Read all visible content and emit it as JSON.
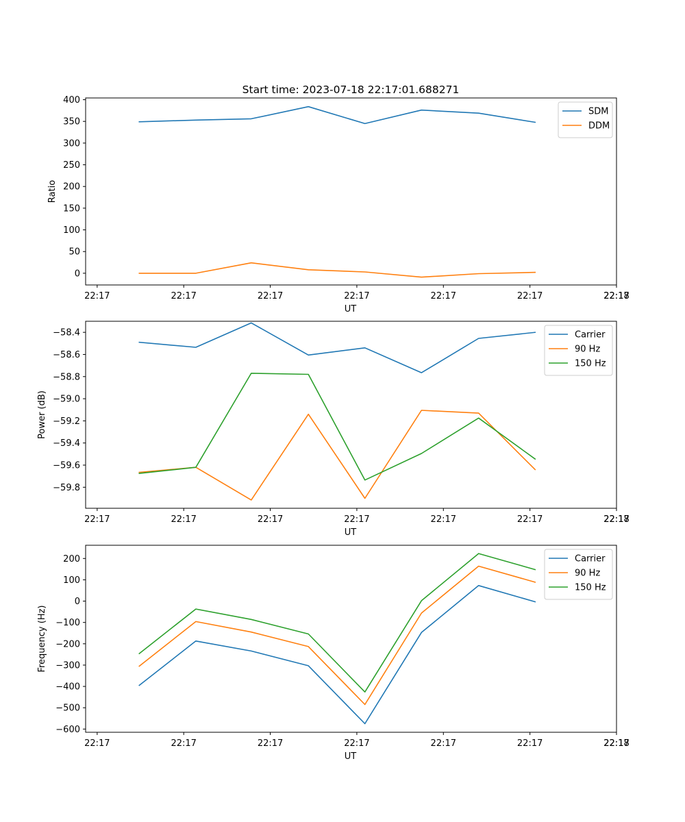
{
  "figure": {
    "title": "Start time: 2023-07-18 22:17:01.688271"
  },
  "chart_data": [
    {
      "type": "line",
      "title": "Start time: 2023-07-18 22:17:01.688271",
      "xlabel": "UT",
      "ylabel": "Ratio",
      "x_tick_labels": [
        "22:17",
        "22:17",
        "22:17",
        "22:17",
        "22:17",
        "22:17",
        "22:17"
      ],
      "x_tick_values": [
        0,
        1.5,
        3,
        4.5,
        6,
        7.5,
        9
      ],
      "last_x_tick_label": "22:18",
      "x": [
        0.73,
        1.71,
        2.67,
        3.66,
        4.64,
        5.62,
        6.61,
        7.59
      ],
      "xlim": [
        -0.2,
        9.0
      ],
      "ylim": [
        -27,
        404
      ],
      "y_ticks": [
        0,
        50,
        100,
        150,
        200,
        250,
        300,
        350,
        400
      ],
      "grid": false,
      "legend_position": "top-right",
      "series": [
        {
          "name": "SDM",
          "color": "#1f77b4",
          "values": [
            349,
            353,
            356,
            384,
            345,
            376,
            369,
            348
          ]
        },
        {
          "name": "DDM",
          "color": "#ff7f0e",
          "values": [
            0,
            0,
            24,
            8,
            3,
            -9,
            -1,
            2
          ]
        }
      ]
    },
    {
      "type": "line",
      "title": "",
      "xlabel": "UT",
      "ylabel": "Power (dB)",
      "x_tick_labels": [
        "22:17",
        "22:17",
        "22:17",
        "22:17",
        "22:17",
        "22:17",
        "22:17"
      ],
      "x_tick_values": [
        0,
        1.5,
        3,
        4.5,
        6,
        7.5,
        9
      ],
      "last_x_tick_label": "22:18",
      "x": [
        0.73,
        1.71,
        2.67,
        3.66,
        4.64,
        5.62,
        6.61,
        7.59
      ],
      "xlim": [
        -0.2,
        9.0
      ],
      "ylim": [
        -59.99,
        -58.3
      ],
      "y_ticks": [
        -59.8,
        -59.6,
        -59.4,
        -59.2,
        -59.0,
        -58.8,
        -58.6,
        -58.4
      ],
      "y_tick_labels": [
        "−59.8",
        "−59.6",
        "−59.4",
        "−59.2",
        "−59.0",
        "−58.8",
        "−58.6",
        "−58.4"
      ],
      "grid": false,
      "legend_position": "top-right",
      "series": [
        {
          "name": "Carrier",
          "color": "#1f77b4",
          "values": [
            -58.49,
            -58.535,
            -58.315,
            -58.605,
            -58.54,
            -58.765,
            -58.455,
            -58.4
          ]
        },
        {
          "name": "90 Hz",
          "color": "#ff7f0e",
          "values": [
            -59.665,
            -59.62,
            -59.915,
            -59.14,
            -59.9,
            -59.105,
            -59.13,
            -59.64
          ]
        },
        {
          "name": "150 Hz",
          "color": "#2ca02c",
          "values": [
            -59.675,
            -59.62,
            -58.77,
            -58.78,
            -59.735,
            -59.495,
            -59.175,
            -59.545
          ]
        }
      ]
    },
    {
      "type": "line",
      "title": "",
      "xlabel": "UT",
      "ylabel": "Frequency (Hz)",
      "x_tick_labels": [
        "22:17",
        "22:17",
        "22:17",
        "22:17",
        "22:17",
        "22:17",
        "22:17"
      ],
      "x_tick_values": [
        0,
        1.5,
        3,
        4.5,
        6,
        7.5,
        9
      ],
      "last_x_tick_label": "22:18",
      "x": [
        0.73,
        1.71,
        2.67,
        3.66,
        4.64,
        5.62,
        6.61,
        7.59
      ],
      "xlim": [
        -0.2,
        9.0
      ],
      "ylim": [
        -615,
        262
      ],
      "y_ticks": [
        -600,
        -500,
        -400,
        -300,
        -200,
        -100,
        0,
        100,
        200
      ],
      "y_tick_labels": [
        "−600",
        "−500",
        "−400",
        "−300",
        "−200",
        "−100",
        "0",
        "100",
        "200"
      ],
      "grid": false,
      "legend_position": "top-right",
      "series": [
        {
          "name": "Carrier",
          "color": "#1f77b4",
          "values": [
            -395,
            -187,
            -234,
            -303,
            -575,
            -147,
            73,
            -3
          ]
        },
        {
          "name": "90 Hz",
          "color": "#ff7f0e",
          "values": [
            -305,
            -96,
            -145,
            -213,
            -485,
            -56,
            164,
            89
          ]
        },
        {
          "name": "150 Hz",
          "color": "#2ca02c",
          "values": [
            -246,
            -37,
            -86,
            -154,
            -426,
            2,
            223,
            148
          ]
        }
      ]
    }
  ]
}
